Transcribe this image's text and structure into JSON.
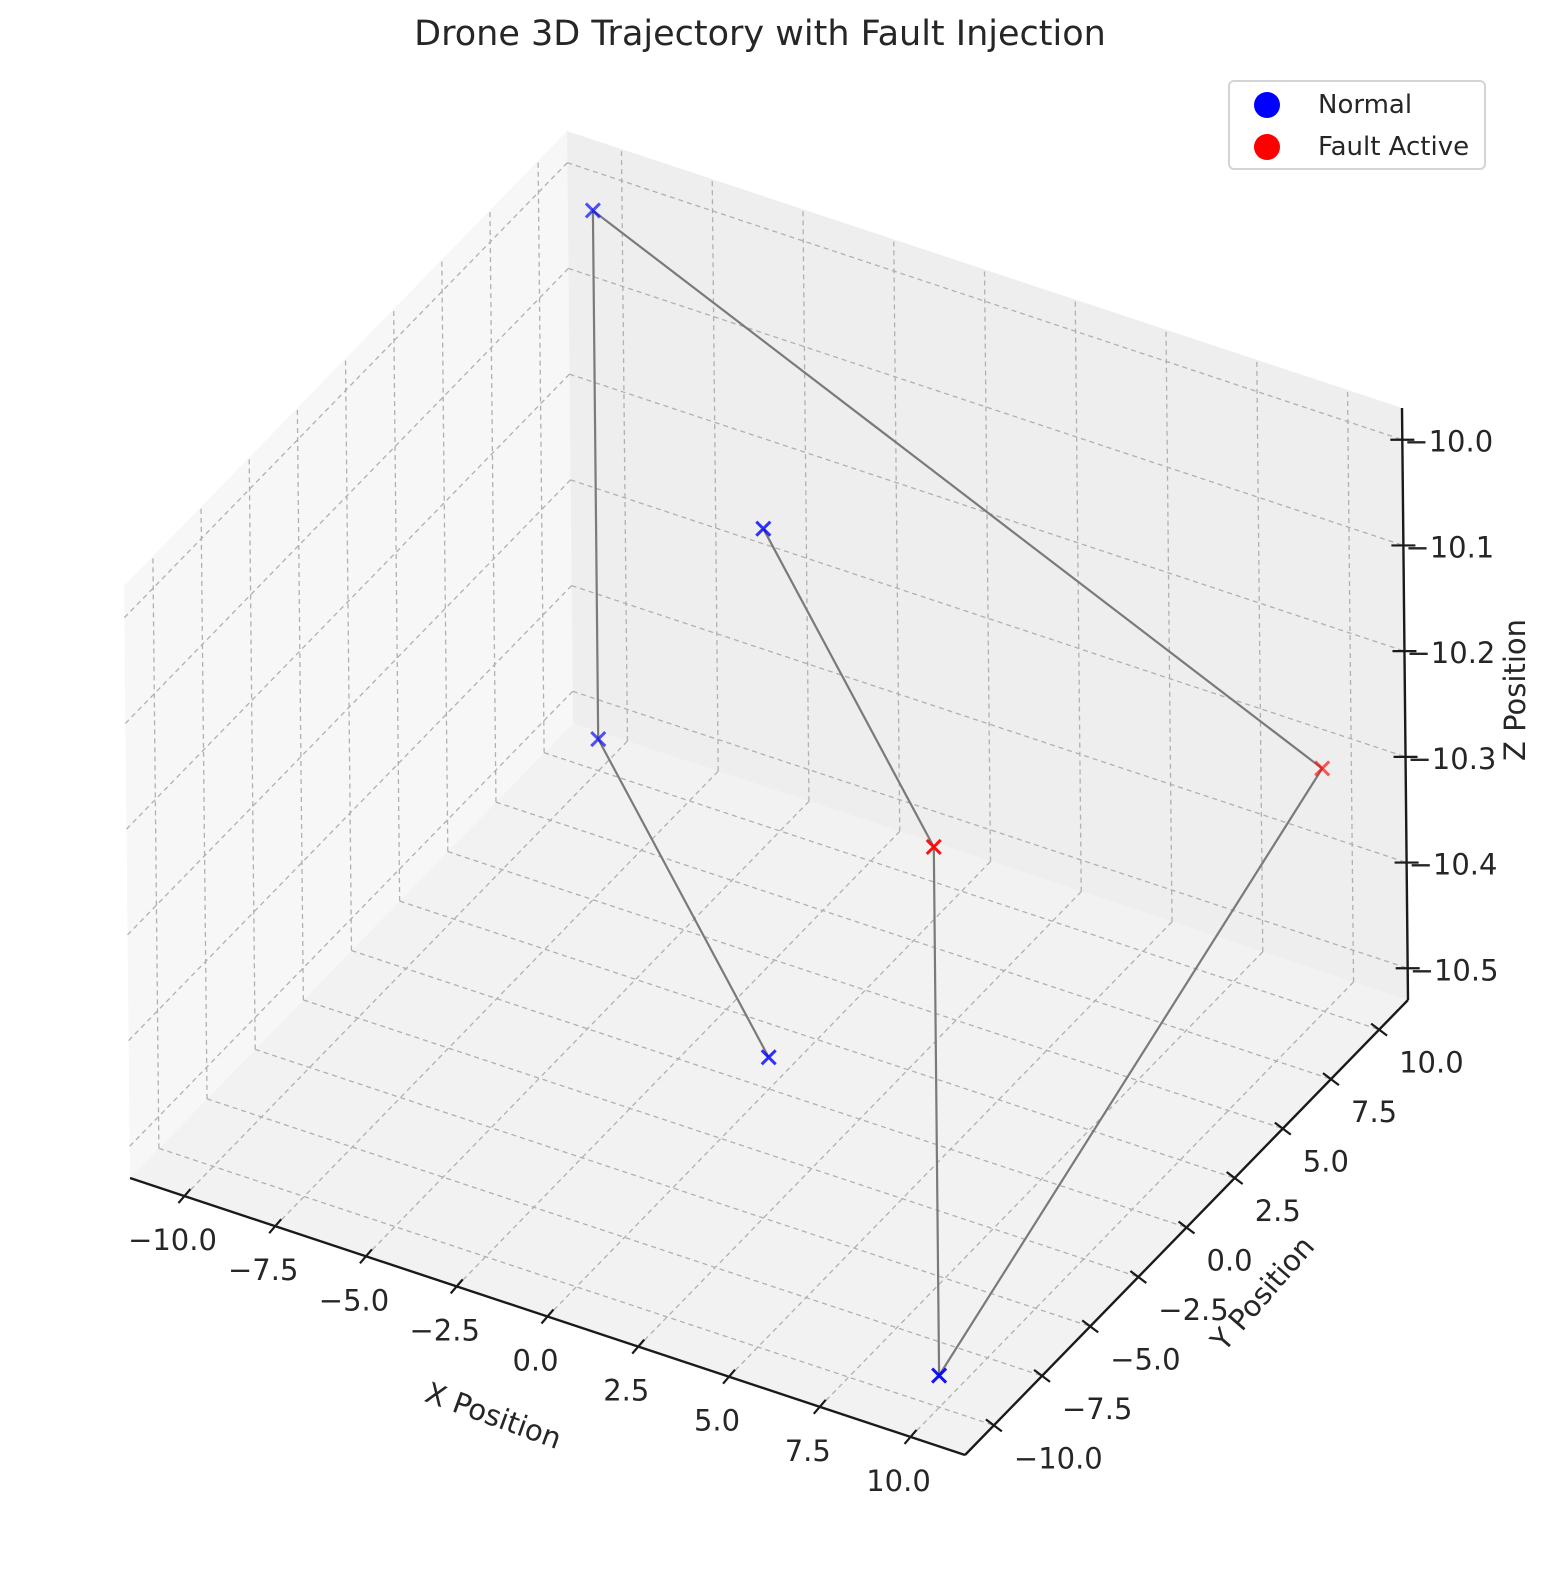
{
  "chart_data": {
    "type": "scatter",
    "projection": "3d",
    "title": "Drone 3D Trajectory with Fault Injection",
    "xlabel": "X Position",
    "ylabel": "Y Position",
    "zlabel": "Z Position",
    "xlim": [
      -11.5,
      11.5
    ],
    "ylim": [
      -11.5,
      11.5
    ],
    "zlim": [
      -10.53,
      -9.97
    ],
    "xticks": [
      "−10.0",
      "−7.5",
      "−5.0",
      "−2.5",
      "0.0",
      "2.5",
      "5.0",
      "7.5",
      "10.0"
    ],
    "yticks": [
      "−10.0",
      "−7.5",
      "−5.0",
      "−2.5",
      "0.0",
      "2.5",
      "5.0",
      "7.5",
      "10.0"
    ],
    "zticks": [
      "−10.0",
      "−10.1",
      "−10.2",
      "−10.3",
      "−10.4",
      "−10.5"
    ],
    "grid": true,
    "legend_position": "top-right",
    "series": [
      {
        "name": "Normal",
        "color": "#0000ff"
      },
      {
        "name": "Fault Active",
        "color": "#ff0000"
      }
    ],
    "points": [
      {
        "x": 0,
        "y": 0,
        "z": -10.5,
        "series": "Normal"
      },
      {
        "x": -10,
        "y": 10,
        "z": -10.5,
        "series": "Normal"
      },
      {
        "x": -10,
        "y": 10,
        "z": -10.0,
        "series": "Normal"
      },
      {
        "x": 10,
        "y": 10,
        "z": -10.3,
        "series": "Fault Active"
      },
      {
        "x": 10,
        "y": -10,
        "z": -10.5,
        "series": "Normal"
      },
      {
        "x": 10,
        "y": -10,
        "z": -10.0,
        "series": "Fault Active"
      },
      {
        "x": 0,
        "y": 0,
        "z": -10.0,
        "series": "Normal"
      }
    ]
  },
  "legend": {
    "items": [
      {
        "label": "Normal",
        "color": "#0000ff"
      },
      {
        "label": "Fault Active",
        "color": "#ff0000"
      }
    ]
  }
}
